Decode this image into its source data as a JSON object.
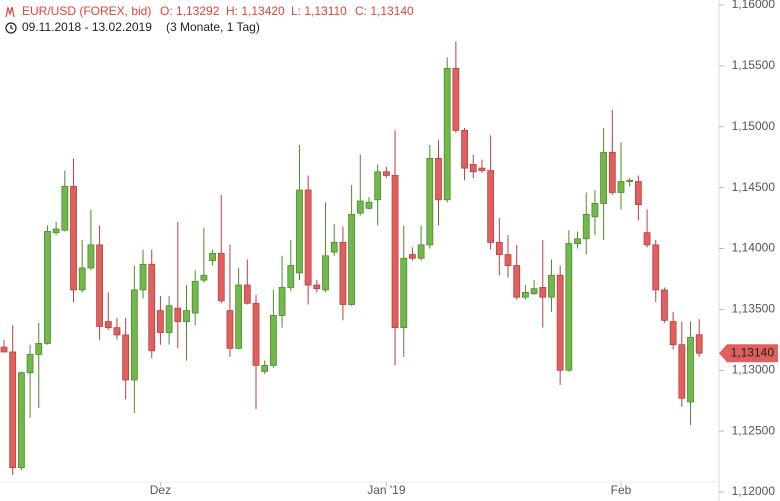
{
  "chart_data": {
    "type": "candlestick",
    "title": "EUR/USD (FOREX, bid)",
    "stats": [
      "O: 1,13292",
      "H: 1,13420",
      "L: 1,13110",
      "C: 1,13140"
    ],
    "subtitle": "09.11.2018 - 13.02.2019",
    "period": "(3 Monate, 1 Tag)",
    "last_price_label": "1,13140",
    "up_color": "#72b84b",
    "down_color": "#e06060",
    "categories": [
      null,
      null,
      null,
      null,
      null,
      null,
      null,
      null,
      null,
      null,
      null,
      null,
      null,
      null,
      null,
      null,
      null,
      null,
      "Dez",
      null,
      null,
      null,
      null,
      null,
      null,
      null,
      null,
      null,
      null,
      null,
      null,
      null,
      null,
      null,
      null,
      null,
      null,
      null,
      null,
      null,
      null,
      null,
      null,
      null,
      "Jan '19",
      null,
      null,
      null,
      null,
      null,
      null,
      null,
      null,
      null,
      null,
      null,
      null,
      null,
      null,
      null,
      null,
      null,
      null,
      null,
      null,
      null,
      null,
      null,
      null,
      null,
      null,
      "Feb",
      null,
      null,
      null,
      null,
      null,
      null,
      null,
      null,
      null
    ],
    "open": [
      1.1319,
      1.1315,
      1.122,
      1.1298,
      1.1313,
      1.1322,
      1.1413,
      1.1415,
      1.1451,
      1.1366,
      1.1384,
      1.1403,
      1.134,
      1.1335,
      1.1329,
      1.1292,
      1.1366,
      1.1387,
      1.1349,
      1.1331,
      1.1351,
      1.134,
      1.1347,
      1.1374,
      1.139,
      1.1396,
      1.1349,
      1.1318,
      1.137,
      1.1355,
      1.1299,
      1.1304,
      1.1345,
      1.1368,
      1.138,
      1.1448,
      1.137,
      1.1366,
      1.1397,
      1.1405,
      1.1354,
      1.1429,
      1.1433,
      1.144,
      1.1463,
      1.146,
      1.1335,
      1.1395,
      1.1392,
      1.1403,
      1.1474,
      1.144,
      1.1548,
      1.1497,
      1.1469,
      1.1466,
      1.1464,
      1.1405,
      1.1395,
      1.1386,
      1.136,
      1.1363,
      1.1368,
      1.136,
      1.1378,
      1.13,
      1.1404,
      1.1408,
      1.1426,
      1.1437,
      1.1479,
      1.1446,
      1.1455,
      1.1455,
      1.1413,
      1.1403,
      1.1366,
      1.134,
      1.1321,
      1.1274,
      1.13292
    ],
    "high": [
      1.1325,
      1.1337,
      1.1299,
      1.1321,
      1.1339,
      1.1419,
      1.1422,
      1.1464,
      1.1474,
      1.1407,
      1.1432,
      1.1419,
      1.1364,
      1.1343,
      1.1343,
      1.1386,
      1.1399,
      1.1399,
      1.1361,
      1.1361,
      1.1422,
      1.137,
      1.1382,
      1.1417,
      1.1399,
      1.1444,
      1.1403,
      1.1384,
      1.1391,
      1.1362,
      1.1308,
      1.1366,
      1.1394,
      1.1407,
      1.1485,
      1.146,
      1.1374,
      1.1438,
      1.142,
      1.1418,
      1.1452,
      1.1477,
      1.1442,
      1.1469,
      1.1467,
      1.1497,
      1.1419,
      1.1401,
      1.1419,
      1.1485,
      1.1489,
      1.1557,
      1.157,
      1.1499,
      1.1477,
      1.1473,
      1.1493,
      1.1425,
      1.1411,
      1.1403,
      1.137,
      1.1374,
      1.1407,
      1.1391,
      1.1386,
      1.1415,
      1.1414,
      1.1446,
      1.1448,
      1.1499,
      1.1514,
      1.1487,
      1.1458,
      1.146,
      1.1432,
      1.1407,
      1.1368,
      1.1348,
      1.134,
      1.134,
      1.1342
    ],
    "low": [
      1.1315,
      1.1214,
      1.1218,
      1.1261,
      1.1269,
      1.1321,
      1.1411,
      1.1414,
      1.1356,
      1.1364,
      1.1382,
      1.1325,
      1.1333,
      1.1325,
      1.1276,
      1.1265,
      1.1359,
      1.131,
      1.1321,
      1.1321,
      1.1318,
      1.1308,
      1.1337,
      1.1372,
      1.1386,
      1.1355,
      1.1311,
      1.1317,
      1.1354,
      1.1268,
      1.1297,
      1.1302,
      1.1335,
      1.1365,
      1.1374,
      1.1354,
      1.1364,
      1.1364,
      1.1394,
      1.1341,
      1.1353,
      1.1427,
      1.1432,
      1.1419,
      1.1458,
      1.1304,
      1.1311,
      1.139,
      1.139,
      1.14,
      1.1419,
      1.1438,
      1.1495,
      1.1456,
      1.1458,
      1.1462,
      1.1399,
      1.1378,
      1.1376,
      1.1358,
      1.1358,
      1.1362,
      1.1335,
      1.1348,
      1.1288,
      1.1299,
      1.14,
      1.1395,
      1.1411,
      1.1407,
      1.1444,
      1.1432,
      1.1451,
      1.1423,
      1.1401,
      1.1356,
      1.1339,
      1.1317,
      1.127,
      1.1255,
      1.1311
    ],
    "close": [
      1.1315,
      1.122,
      1.1298,
      1.1313,
      1.1322,
      1.1414,
      1.1416,
      1.1451,
      1.1366,
      1.1384,
      1.1403,
      1.1336,
      1.1335,
      1.1329,
      1.1292,
      1.1366,
      1.1387,
      1.1316,
      1.1331,
      1.1353,
      1.134,
      1.1349,
      1.1373,
      1.1378,
      1.1396,
      1.1357,
      1.1318,
      1.137,
      1.1355,
      1.1304,
      1.1304,
      1.1345,
      1.1368,
      1.1386,
      1.1448,
      1.137,
      1.1367,
      1.1394,
      1.1405,
      1.1354,
      1.1428,
      1.1439,
      1.1438,
      1.1463,
      1.146,
      1.1335,
      1.1392,
      1.1392,
      1.1403,
      1.1474,
      1.144,
      1.1548,
      1.1497,
      1.1466,
      1.1463,
      1.1464,
      1.1405,
      1.1395,
      1.1386,
      1.136,
      1.1364,
      1.1367,
      1.136,
      1.1378,
      1.13,
      1.1404,
      1.1408,
      1.1428,
      1.1437,
      1.1479,
      1.1446,
      1.1455,
      1.1456,
      1.1436,
      1.1403,
      1.1366,
      1.1341,
      1.1321,
      1.1277,
      1.1327,
      1.1314
    ],
    "ylim": [
      1.12,
      1.16
    ],
    "yticks": [
      {
        "value": 1.12,
        "label": "1,12000"
      },
      {
        "value": 1.125,
        "label": "1,12500"
      },
      {
        "value": 1.13,
        "label": "1,13000"
      },
      {
        "value": 1.135,
        "label": "1,13500"
      },
      {
        "value": 1.14,
        "label": "1,14000"
      },
      {
        "value": 1.145,
        "label": "1,14500"
      },
      {
        "value": 1.15,
        "label": "1,15000"
      },
      {
        "value": 1.155,
        "label": "1,15500"
      },
      {
        "value": 1.16,
        "label": "1,16000"
      }
    ],
    "grid": false
  }
}
